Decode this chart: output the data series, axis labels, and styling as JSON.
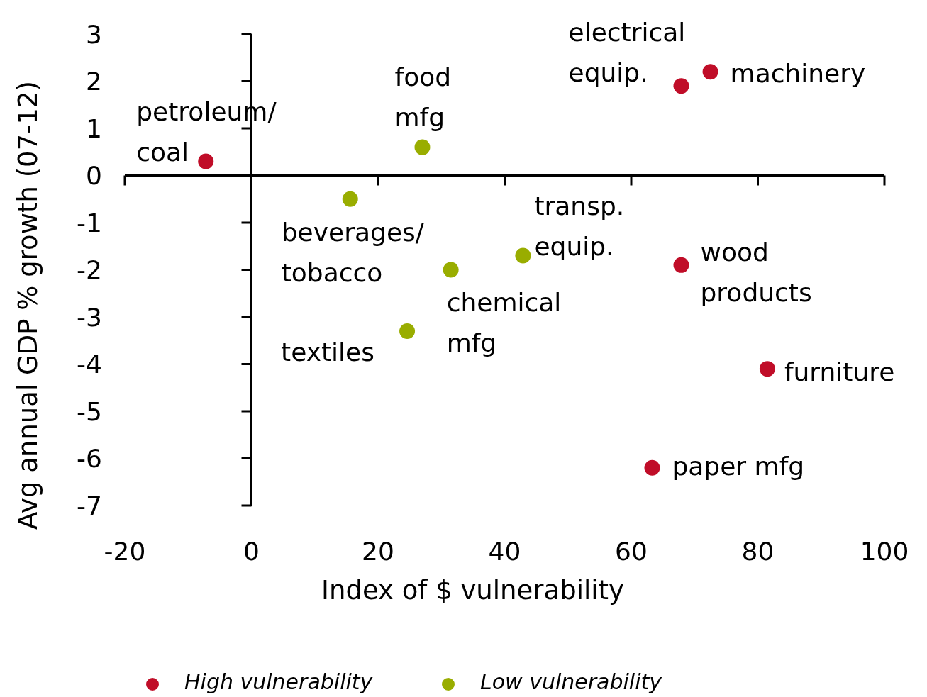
{
  "chart_data": {
    "type": "scatter",
    "xlabel": "Index of $ vulnerability",
    "ylabel": "Avg annual GDP % growth (07-12)",
    "xlim": [
      -20,
      100
    ],
    "xticks": [
      -20,
      0,
      20,
      40,
      60,
      80,
      100
    ],
    "ylim": [
      -7,
      3
    ],
    "yticks": [
      -7,
      -6,
      -5,
      -4,
      -3,
      -2,
      -1,
      0,
      1,
      2,
      3
    ],
    "legend": "bottom",
    "marker": "circle",
    "series": [
      {
        "name": "High vulnerability",
        "color": "#c00d28",
        "x": [
          -7.2,
          67.9,
          72.5,
          67.9,
          81.5,
          63.3
        ],
        "values": [
          0.3,
          1.9,
          2.2,
          -1.9,
          -4.1,
          -6.2
        ]
      },
      {
        "name": "Low vulnerability",
        "color": "#99ad00",
        "x": [
          27,
          15.6,
          42.9,
          31.5,
          24.6
        ],
        "values": [
          0.6,
          -0.5,
          -1.7,
          -2,
          -3.3
        ]
      }
    ],
    "annotations": [
      {
        "text": "petroleum/\ncoal",
        "x": -7.2,
        "y": 0.3
      },
      {
        "text": "food\nmfg",
        "x": 27,
        "y": 0.6
      },
      {
        "text": "electrical\nequip.",
        "x": 67.9,
        "y": 1.9
      },
      {
        "text": "machinery",
        "x": 72.5,
        "y": 2.2
      },
      {
        "text": "beverages/\ntobacco",
        "x": 15.6,
        "y": -0.5
      },
      {
        "text": "transp.\nequip.",
        "x": 42.9,
        "y": -1.7
      },
      {
        "text": "chemical\nmfg",
        "x": 31.5,
        "y": -2
      },
      {
        "text": "textiles",
        "x": 24.6,
        "y": -3.3
      },
      {
        "text": "wood\nproducts",
        "x": 67.9,
        "y": -1.9
      },
      {
        "text": "furniture",
        "x": 81.5,
        "y": -4.1
      },
      {
        "text": "paper mfg",
        "x": 63.3,
        "y": -6.2
      }
    ]
  }
}
